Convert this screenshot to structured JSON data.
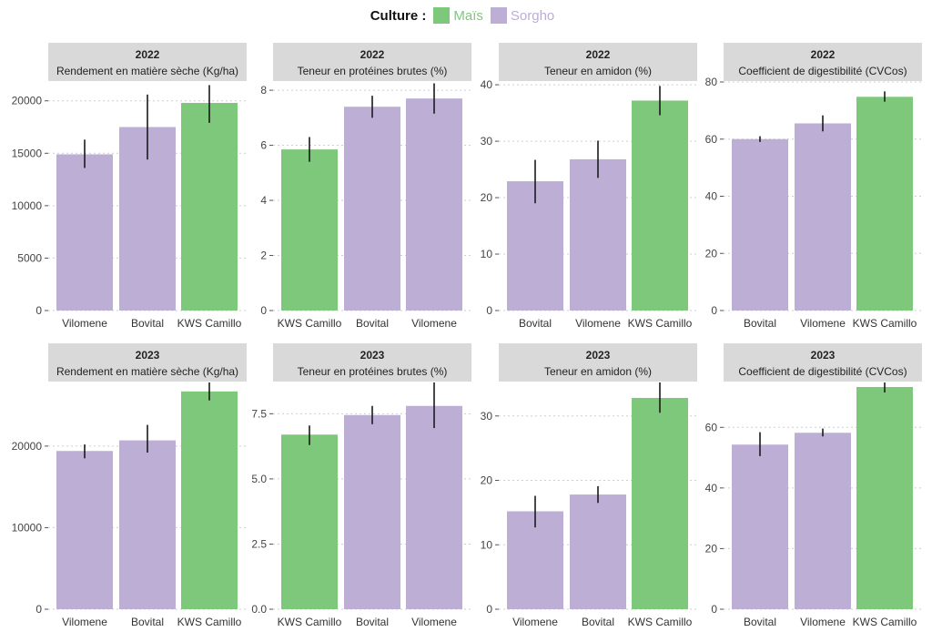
{
  "legend": {
    "title": "Culture :",
    "items": [
      {
        "label": "Maïs",
        "color": "#7EC87C",
        "key": "mais"
      },
      {
        "label": "Sorgho",
        "color": "#BCAED5",
        "key": "sorgho"
      }
    ]
  },
  "colors": {
    "mais": "#7EC87C",
    "sorgho": "#BCAED5",
    "strip_bg": "#D9D9D9",
    "grid": "#cfcfcf"
  },
  "chart_data": [
    {
      "type": "bar",
      "year": "2022",
      "title": "Rendement en matière sèche (Kg/ha)",
      "categories": [
        "Vilomene",
        "Bovital",
        "KWS Camillo"
      ],
      "crops": [
        "sorgho",
        "sorgho",
        "mais"
      ],
      "values": [
        14900,
        17500,
        19800
      ],
      "errors": [
        [
          13600,
          16300
        ],
        [
          14400,
          20600
        ],
        [
          17900,
          21500
        ]
      ],
      "ylim": [
        0,
        21800
      ],
      "ticks": [
        0,
        5000,
        10000,
        15000,
        20000
      ],
      "tick_labels": [
        "0",
        "5000",
        "10000",
        "15000",
        "20000"
      ]
    },
    {
      "type": "bar",
      "year": "2022",
      "title": "Teneur en protéines brutes (%)",
      "categories": [
        "KWS Camillo",
        "Bovital",
        "Vilomene"
      ],
      "crops": [
        "mais",
        "sorgho",
        "sorgho"
      ],
      "values": [
        5.85,
        7.4,
        7.7
      ],
      "errors": [
        [
          5.4,
          6.3
        ],
        [
          7.0,
          7.8
        ],
        [
          7.15,
          8.25
        ]
      ],
      "ylim": [
        0,
        8.3
      ],
      "ticks": [
        0,
        2,
        4,
        6,
        8
      ],
      "tick_labels": [
        "0",
        "2",
        "4",
        "6",
        "8"
      ]
    },
    {
      "type": "bar",
      "year": "2022",
      "title": "Teneur en amidon (%)",
      "categories": [
        "Bovital",
        "Vilomene",
        "KWS Camillo"
      ],
      "crops": [
        "sorgho",
        "sorgho",
        "mais"
      ],
      "values": [
        22.9,
        26.8,
        37.2
      ],
      "errors": [
        [
          19,
          26.7
        ],
        [
          23.5,
          30.1
        ],
        [
          34.6,
          39.8
        ]
      ],
      "ylim": [
        0,
        40.5
      ],
      "ticks": [
        0,
        10,
        20,
        30,
        40
      ],
      "tick_labels": [
        "0",
        "10",
        "20",
        "30",
        "40"
      ]
    },
    {
      "type": "bar",
      "year": "2022",
      "title": "Coefficient de digestibilité (CVCos)",
      "categories": [
        "Bovital",
        "Vilomene",
        "KWS Camillo"
      ],
      "crops": [
        "sorgho",
        "sorgho",
        "mais"
      ],
      "values": [
        60,
        65.5,
        74.8
      ],
      "errors": [
        [
          59,
          61
        ],
        [
          62.7,
          68.3
        ],
        [
          73.1,
          76.7
        ]
      ],
      "ylim": [
        0,
        80
      ],
      "ticks": [
        0,
        20,
        40,
        60,
        80
      ],
      "tick_labels": [
        "0",
        "20",
        "40",
        "60",
        "80"
      ]
    },
    {
      "type": "bar",
      "year": "2023",
      "title": "Rendement en matière sèche (Kg/ha)",
      "categories": [
        "Vilomene",
        "Bovital",
        "KWS Camillo"
      ],
      "crops": [
        "sorgho",
        "sorgho",
        "mais"
      ],
      "values": [
        19400,
        20700,
        26700
      ],
      "errors": [
        [
          18500,
          20200
        ],
        [
          19200,
          22600
        ],
        [
          25600,
          27800
        ]
      ],
      "ylim": [
        0,
        27800
      ],
      "ticks": [
        0,
        10000,
        20000
      ],
      "tick_labels": [
        "0",
        "10000",
        "20000"
      ]
    },
    {
      "type": "bar",
      "year": "2023",
      "title": "Teneur en protéines brutes (%)",
      "categories": [
        "KWS Camillo",
        "Bovital",
        "Vilomene"
      ],
      "crops": [
        "mais",
        "sorgho",
        "sorgho"
      ],
      "values": [
        6.7,
        7.45,
        7.8
      ],
      "errors": [
        [
          6.3,
          7.05
        ],
        [
          7.1,
          7.8
        ],
        [
          6.95,
          8.7
        ]
      ],
      "ylim": [
        0,
        8.7
      ],
      "ticks": [
        0,
        2.5,
        5,
        7.5
      ],
      "tick_labels": [
        "0.0",
        "2.5",
        "5.0",
        "7.5"
      ]
    },
    {
      "type": "bar",
      "year": "2023",
      "title": "Teneur en amidon (%)",
      "categories": [
        "Vilomene",
        "Bovital",
        "KWS Camillo"
      ],
      "crops": [
        "sorgho",
        "sorgho",
        "mais"
      ],
      "values": [
        15.2,
        17.8,
        32.8
      ],
      "errors": [
        [
          12.7,
          17.6
        ],
        [
          16.5,
          19.1
        ],
        [
          30.5,
          35.2
        ]
      ],
      "ylim": [
        0,
        35.2
      ],
      "ticks": [
        0,
        10,
        20,
        30
      ],
      "tick_labels": [
        "0",
        "10",
        "20",
        "30"
      ]
    },
    {
      "type": "bar",
      "year": "2023",
      "title": "Coefficient de digestibilité (CVCos)",
      "categories": [
        "Bovital",
        "Vilomene",
        "KWS Camillo"
      ],
      "crops": [
        "sorgho",
        "sorgho",
        "mais"
      ],
      "values": [
        54.3,
        58.2,
        73.3
      ],
      "errors": [
        [
          50.5,
          58.4
        ],
        [
          57,
          59.6
        ],
        [
          71.5,
          74.8
        ]
      ],
      "ylim": [
        0,
        74.8
      ],
      "ticks": [
        0,
        20,
        40,
        60
      ],
      "tick_labels": [
        "0",
        "20",
        "40",
        "60"
      ]
    }
  ]
}
